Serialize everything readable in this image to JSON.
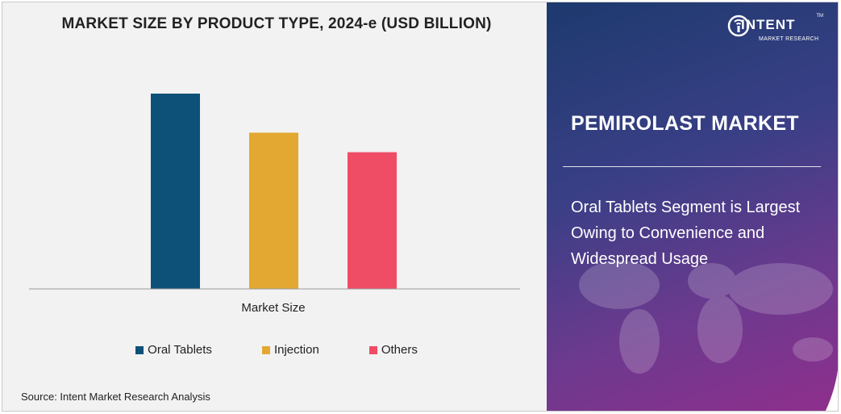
{
  "chart_data": {
    "type": "bar",
    "title": "MARKET SIZE BY PRODUCT TYPE, 2024-e (USD BILLION)",
    "xlabel": "Market Size",
    "ylabel": "",
    "categories": [
      "Market Size"
    ],
    "series": [
      {
        "name": "Oral Tablets",
        "values": [
          100
        ],
        "color": "#0d5179"
      },
      {
        "name": "Injection",
        "values": [
          80
        ],
        "color": "#e3a831"
      },
      {
        "name": "Others",
        "values": [
          70
        ],
        "color": "#ef4c66"
      }
    ],
    "ylim": [
      0,
      100
    ],
    "grid": false,
    "legend_position": "bottom"
  },
  "source": "Source: Intent Market Research Analysis",
  "side_panel": {
    "market_title": "PEMIROLAST MARKET",
    "insight": "Oral Tablets Segment is Largest Owing to Convenience and Widespread Usage"
  },
  "logo": {
    "name": "INTENT",
    "subtitle": "MARKET RESEARCH",
    "trademark": "TM"
  }
}
